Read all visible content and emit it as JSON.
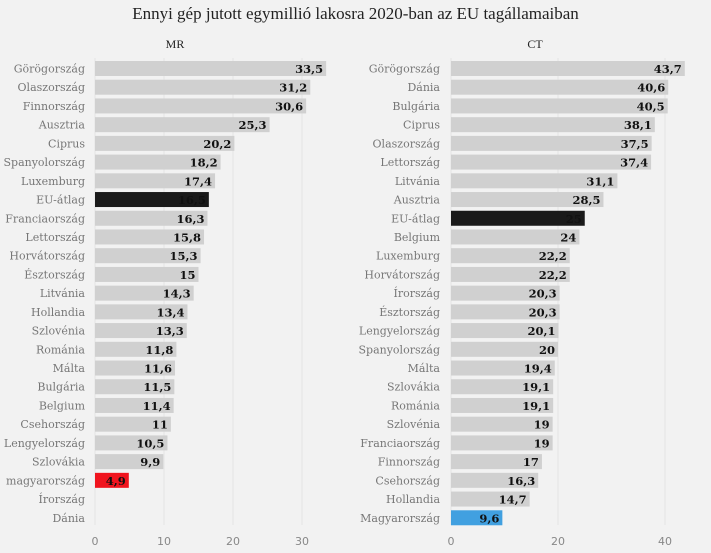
{
  "chart_data": [
    {
      "type": "bar",
      "orientation": "horizontal",
      "title": "MR",
      "xlim": [
        0,
        33.5
      ],
      "xticks": [
        0,
        10,
        20,
        30
      ],
      "grid": true,
      "categories": [
        "Görögország",
        "Olaszország",
        "Finnország",
        "Ausztria",
        "Ciprus",
        "Spanyolország",
        "Luxemburg",
        "EU-átlag",
        "Franciaország",
        "Lettország",
        "Horvátország",
        "Észtország",
        "Litvánia",
        "Hollandia",
        "Szlovénia",
        "Románia",
        "Málta",
        "Bulgária",
        "Belgium",
        "Csehország",
        "Lengyelország",
        "Szlovákia",
        "magyarország",
        "Írország",
        "Dánia"
      ],
      "values": [
        33.5,
        31.2,
        30.6,
        25.3,
        20.2,
        18.2,
        17.4,
        16.5,
        16.3,
        15.8,
        15.3,
        15,
        14.3,
        13.4,
        13.3,
        11.8,
        11.6,
        11.5,
        11.4,
        11,
        10.5,
        9.9,
        4.9,
        null,
        null
      ],
      "labels": [
        "33,5",
        "31,2",
        "30,6",
        "25,3",
        "20,2",
        "18,2",
        "17,4",
        "16,5",
        "16,3",
        "15,8",
        "15,3",
        "15",
        "14,3",
        "13,4",
        "13,3",
        "11,8",
        "11,6",
        "11,5",
        "11,4",
        "11",
        "10,5",
        "9,9",
        "4,9",
        "",
        ""
      ],
      "highlights": {
        "EU-átlag": "#1a1a1a",
        "magyarország": "#f0141e"
      }
    },
    {
      "type": "bar",
      "orientation": "horizontal",
      "title": "CT",
      "xlim": [
        0,
        43.7
      ],
      "xticks": [
        0,
        20,
        40
      ],
      "grid": true,
      "categories": [
        "Görögország",
        "Dánia",
        "Bulgária",
        "Ciprus",
        "Olaszország",
        "Lettország",
        "Litvánia",
        "Ausztria",
        "EU-átlag",
        "Belgium",
        "Luxemburg",
        "Horvátország",
        "Írország",
        "Észtország",
        "Lengyelország",
        "Spanyolország",
        "Málta",
        "Szlovákia",
        "Románia",
        "Szlovénia",
        "Franciaország",
        "Finnország",
        "Csehország",
        "Hollandia",
        "Magyarország"
      ],
      "values": [
        43.7,
        40.6,
        40.5,
        38.1,
        37.5,
        37.4,
        31.1,
        28.5,
        25,
        24,
        22.2,
        22.2,
        20.3,
        20.3,
        20.1,
        20,
        19.4,
        19.1,
        19.1,
        19,
        19,
        17,
        16.3,
        14.7,
        9.6
      ],
      "labels": [
        "43,7",
        "40,6",
        "40,5",
        "38,1",
        "37,5",
        "37,4",
        "31,1",
        "28,5",
        "25",
        "24",
        "22,2",
        "22,2",
        "20,3",
        "20,3",
        "20,1",
        "20",
        "19,4",
        "19,1",
        "19,1",
        "19",
        "19",
        "17",
        "16,3",
        "14,7",
        "9,6"
      ],
      "highlights": {
        "EU-átlag": "#1a1a1a",
        "Magyarország": "#41a0e0"
      }
    }
  ],
  "title": "Ennyi gép jutott egymillió lakosra 2020-ban az EU tagállamaiban",
  "colors": {
    "bar": "#d0d0d0",
    "grid": "#e4e4e4",
    "highlight_text": "#ffffff"
  }
}
